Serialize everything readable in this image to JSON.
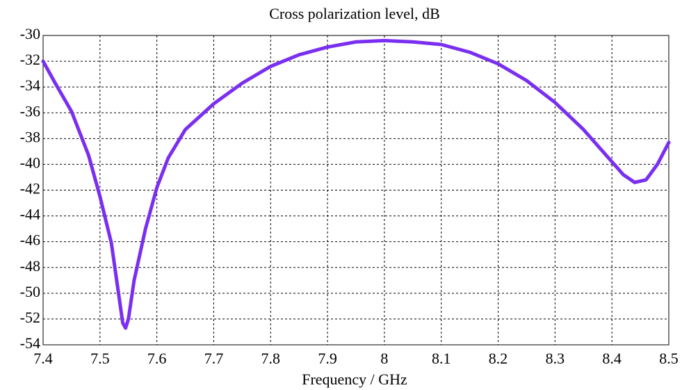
{
  "chart_data": {
    "type": "line",
    "title": "Cross polarization level, dB",
    "xlabel": "Frequency / GHz",
    "x": [
      7.4,
      7.42,
      7.45,
      7.48,
      7.5,
      7.52,
      7.53,
      7.54,
      7.545,
      7.55,
      7.56,
      7.58,
      7.6,
      7.62,
      7.65,
      7.7,
      7.75,
      7.8,
      7.85,
      7.9,
      7.95,
      8.0,
      8.05,
      8.1,
      8.15,
      8.2,
      8.25,
      8.3,
      8.35,
      8.4,
      8.42,
      8.44,
      8.46,
      8.48,
      8.5
    ],
    "series": [
      {
        "name": "Cross polarization level",
        "color": "#7a2ff0",
        "values": [
          -32,
          -33.6,
          -35.9,
          -39.3,
          -42.5,
          -46.1,
          -49.2,
          -52.3,
          -52.7,
          -52.0,
          -49.0,
          -45.0,
          -41.8,
          -39.5,
          -37.3,
          -35.3,
          -33.7,
          -32.4,
          -31.5,
          -30.9,
          -30.5,
          -30.4,
          -30.5,
          -30.7,
          -31.3,
          -32.2,
          -33.5,
          -35.2,
          -37.3,
          -39.8,
          -40.8,
          -41.4,
          -41.2,
          -40.0,
          -38.3
        ]
      }
    ],
    "xlim": [
      7.4,
      8.5
    ],
    "xticks": [
      7.4,
      7.5,
      7.6,
      7.7,
      7.8,
      7.9,
      8,
      8.1,
      8.2,
      8.3,
      8.4,
      8.5
    ],
    "ylim": [
      -54,
      -30
    ],
    "yticks": [
      -30,
      -32,
      -34,
      -36,
      -38,
      -40,
      -42,
      -44,
      -46,
      -48,
      -50,
      -52,
      -54
    ],
    "grid": true
  }
}
